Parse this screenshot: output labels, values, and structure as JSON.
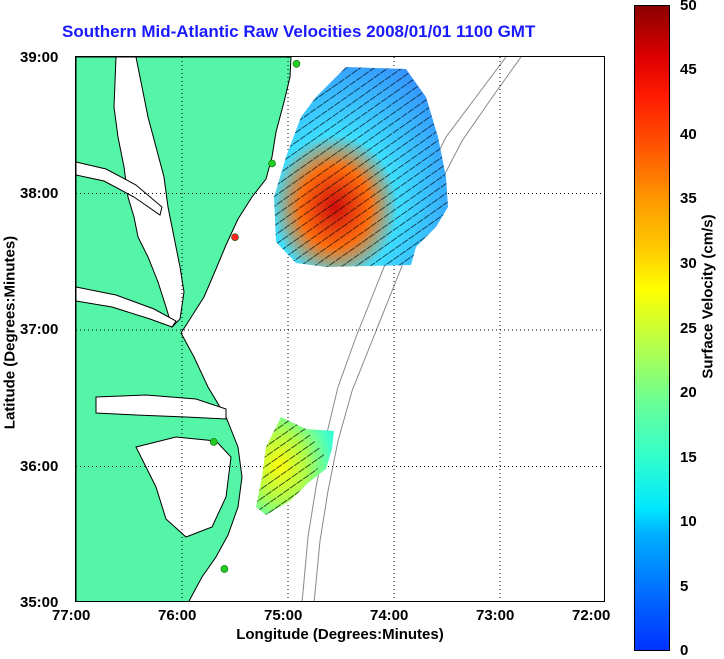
{
  "title": "Southern Mid-Atlantic Raw Velocities 2008/01/01 1100 GMT",
  "axes": {
    "x_label": "Longitude (Degrees:Minutes)",
    "y_label": "Latitude (Degrees:Minutes)",
    "x_ticks": [
      "77:00",
      "76:00",
      "75:00",
      "74:00",
      "73:00",
      "72:00"
    ],
    "y_ticks": [
      "39:00",
      "38:00",
      "37:00",
      "36:00",
      "35:00"
    ]
  },
  "colorbar": {
    "label": "Surface Velocity (cm/s)",
    "ticks": [
      "50",
      "45",
      "40",
      "35",
      "30",
      "25",
      "20",
      "15",
      "10",
      "5",
      "0"
    ]
  },
  "colors": {
    "land": "#55f5a8",
    "coast": "#000000",
    "title": "#1a1aff",
    "station": "#22cc22",
    "station_alt": "#ff2222"
  },
  "map_extent": {
    "lon": [
      -77,
      -72
    ],
    "lat": [
      35,
      39
    ]
  },
  "stations": [
    {
      "lon": -74.92,
      "lat": 38.95,
      "color": "station"
    },
    {
      "lon": -75.15,
      "lat": 38.22,
      "color": "station"
    },
    {
      "lon": -75.5,
      "lat": 37.68,
      "color": "station_alt"
    },
    {
      "lon": -75.7,
      "lat": 36.18,
      "color": "station"
    },
    {
      "lon": -75.6,
      "lat": 35.25,
      "color": "station"
    }
  ]
}
